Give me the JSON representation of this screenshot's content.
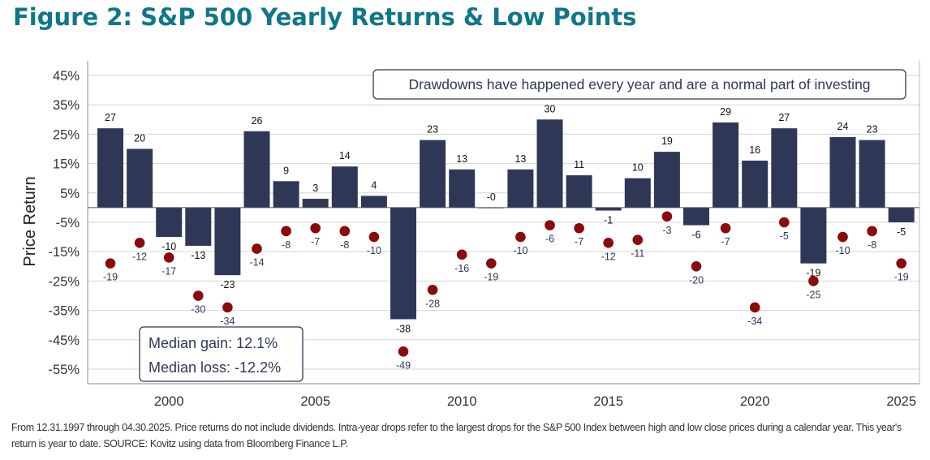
{
  "title": "Figure 2: S&P 500 Yearly Returns & Low Points",
  "footnote": "From 12.31.1997 through 04.30.2025. Price returns do not include dividends. Intra-year drops refer to the largest drops for the S&P 500 Index between high and low close prices during a calendar year. This year's return is year to date. SOURCE: Kovitz using data from Bloomberg Finance L.P.",
  "chart_data": {
    "type": "bar",
    "title": "Figure 2: S&P 500 Yearly Returns & Low Points",
    "xlabel": "",
    "ylabel": "Price Return",
    "ylim": [
      -60,
      50
    ],
    "yticks": [
      45,
      35,
      25,
      15,
      5,
      -5,
      -15,
      -25,
      -35,
      -45,
      -55
    ],
    "ytick_labels": [
      "45%",
      "35%",
      "25%",
      "15%",
      "5%",
      "-5%",
      "-15%",
      "-25%",
      "-35%",
      "-45%",
      "-55%"
    ],
    "xtick_years": [
      2000,
      2005,
      2010,
      2015,
      2020,
      2025
    ],
    "xtick_labels": [
      "2000",
      "2005",
      "2010",
      "2015",
      "2020",
      "2025"
    ],
    "categories": [
      1998,
      1999,
      2000,
      2001,
      2002,
      2003,
      2004,
      2005,
      2006,
      2007,
      2008,
      2009,
      2010,
      2011,
      2012,
      2013,
      2014,
      2015,
      2016,
      2017,
      2018,
      2019,
      2020,
      2021,
      2022,
      2023,
      2024,
      2025
    ],
    "series": [
      {
        "name": "Yearly Return",
        "mark": "bar",
        "color": "#2e3856",
        "values": [
          27,
          20,
          -10,
          -13,
          -23,
          26,
          9,
          3,
          14,
          4,
          -38,
          23,
          13,
          0,
          13,
          30,
          11,
          -1,
          10,
          19,
          -6,
          29,
          16,
          27,
          -19,
          24,
          23,
          -5
        ],
        "labels": [
          "27",
          "20",
          "-10",
          "-13",
          "-23",
          "26",
          "9",
          "3",
          "14",
          "4",
          "-38",
          "23",
          "13",
          "-0",
          "13",
          "30",
          "11",
          "-1",
          "10",
          "19",
          "-6",
          "29",
          "16",
          "27",
          "-19",
          "24",
          "23",
          "-5"
        ]
      },
      {
        "name": "Intra-year Low Point",
        "mark": "dot",
        "color": "#8b0a0a",
        "values": [
          -19,
          -12,
          -17,
          -30,
          -34,
          -14,
          -8,
          -7,
          -8,
          -10,
          -49,
          -28,
          -16,
          -19,
          -10,
          -6,
          -7,
          -12,
          -11,
          -3,
          -20,
          -7,
          -34,
          -5,
          -25,
          -10,
          -8,
          -19
        ],
        "labels": [
          "-19",
          "-12",
          "-17",
          "-30",
          "-34",
          "-14",
          "-8",
          "-7",
          "-8",
          "-10",
          "-49",
          "-28",
          "-16",
          "-19",
          "-10",
          "-6",
          "-7",
          "-12",
          "-11",
          "-3",
          "-20",
          "-7",
          "-34",
          "-5",
          "-25",
          "-10",
          "-8",
          "-19"
        ]
      }
    ],
    "annotations": {
      "callout": "Drawdowns have happened every year and are a normal part of investing",
      "median_gain": "Median gain: 12.1%",
      "median_loss": "Median loss: -12.2%"
    },
    "grid": true
  }
}
